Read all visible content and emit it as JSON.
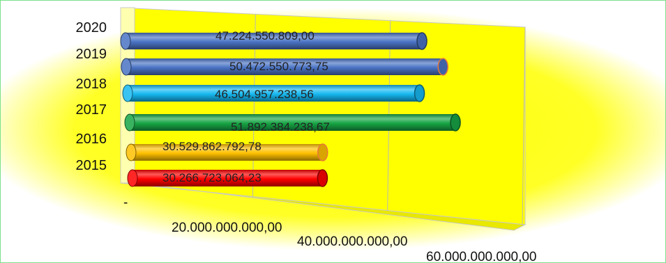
{
  "chart_data": {
    "type": "bar",
    "orientation": "horizontal",
    "style": "3d-cylinder",
    "title": "",
    "xlabel": "",
    "ylabel": "",
    "categories": [
      "2020",
      "2019",
      "2018",
      "2017",
      "2016",
      "2015"
    ],
    "values": [
      47224550809.0,
      50472550773.75,
      46504957238.56,
      51892384238.67,
      30529862792.78,
      30266723064.23
    ],
    "value_labels": [
      "47.224.550.809,00",
      "50.472.550.773,75",
      "46.504.957.238,56",
      "51.892.384.238,67",
      "30.529.862.792,78",
      "30.266.723.064,23"
    ],
    "bar_colors": [
      "#4a73c4",
      "#4a73c4",
      "#16b8f0",
      "#17a545",
      "#ffc000",
      "#ff0000"
    ],
    "x_ticks": [
      "-",
      "20.000.000.000,00",
      "40.000.000.000,00",
      "60.000.000.000,00"
    ],
    "xlim": [
      0,
      60000000000
    ],
    "grid": true,
    "background_color": "#ffff00",
    "legend": "none"
  }
}
